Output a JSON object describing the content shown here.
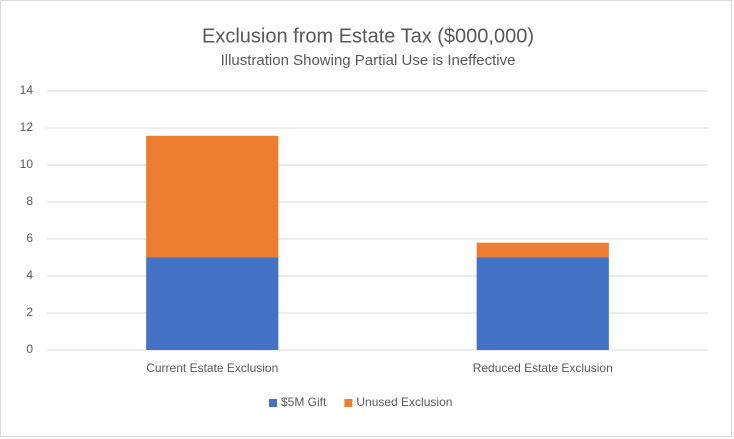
{
  "chart_data": {
    "type": "stacked_bar",
    "title": "Exclusion from Estate Tax ($000,000)",
    "subtitle": "Illustration Showing Partial Use is Ineffective",
    "categories": [
      "Current Estate Exclusion",
      "Reduced Estate Exclusion"
    ],
    "series": [
      {
        "name": "$5M Gift",
        "color": "#4472c4",
        "values": [
          5,
          5
        ]
      },
      {
        "name": "Unused Exclusion",
        "color": "#ed7d31",
        "values": [
          6.58,
          0.8
        ]
      }
    ],
    "ylim": [
      0,
      14
    ],
    "yticks": [
      0,
      2,
      4,
      6,
      8,
      10,
      12,
      14
    ],
    "grid": true,
    "legend": "bottom"
  }
}
